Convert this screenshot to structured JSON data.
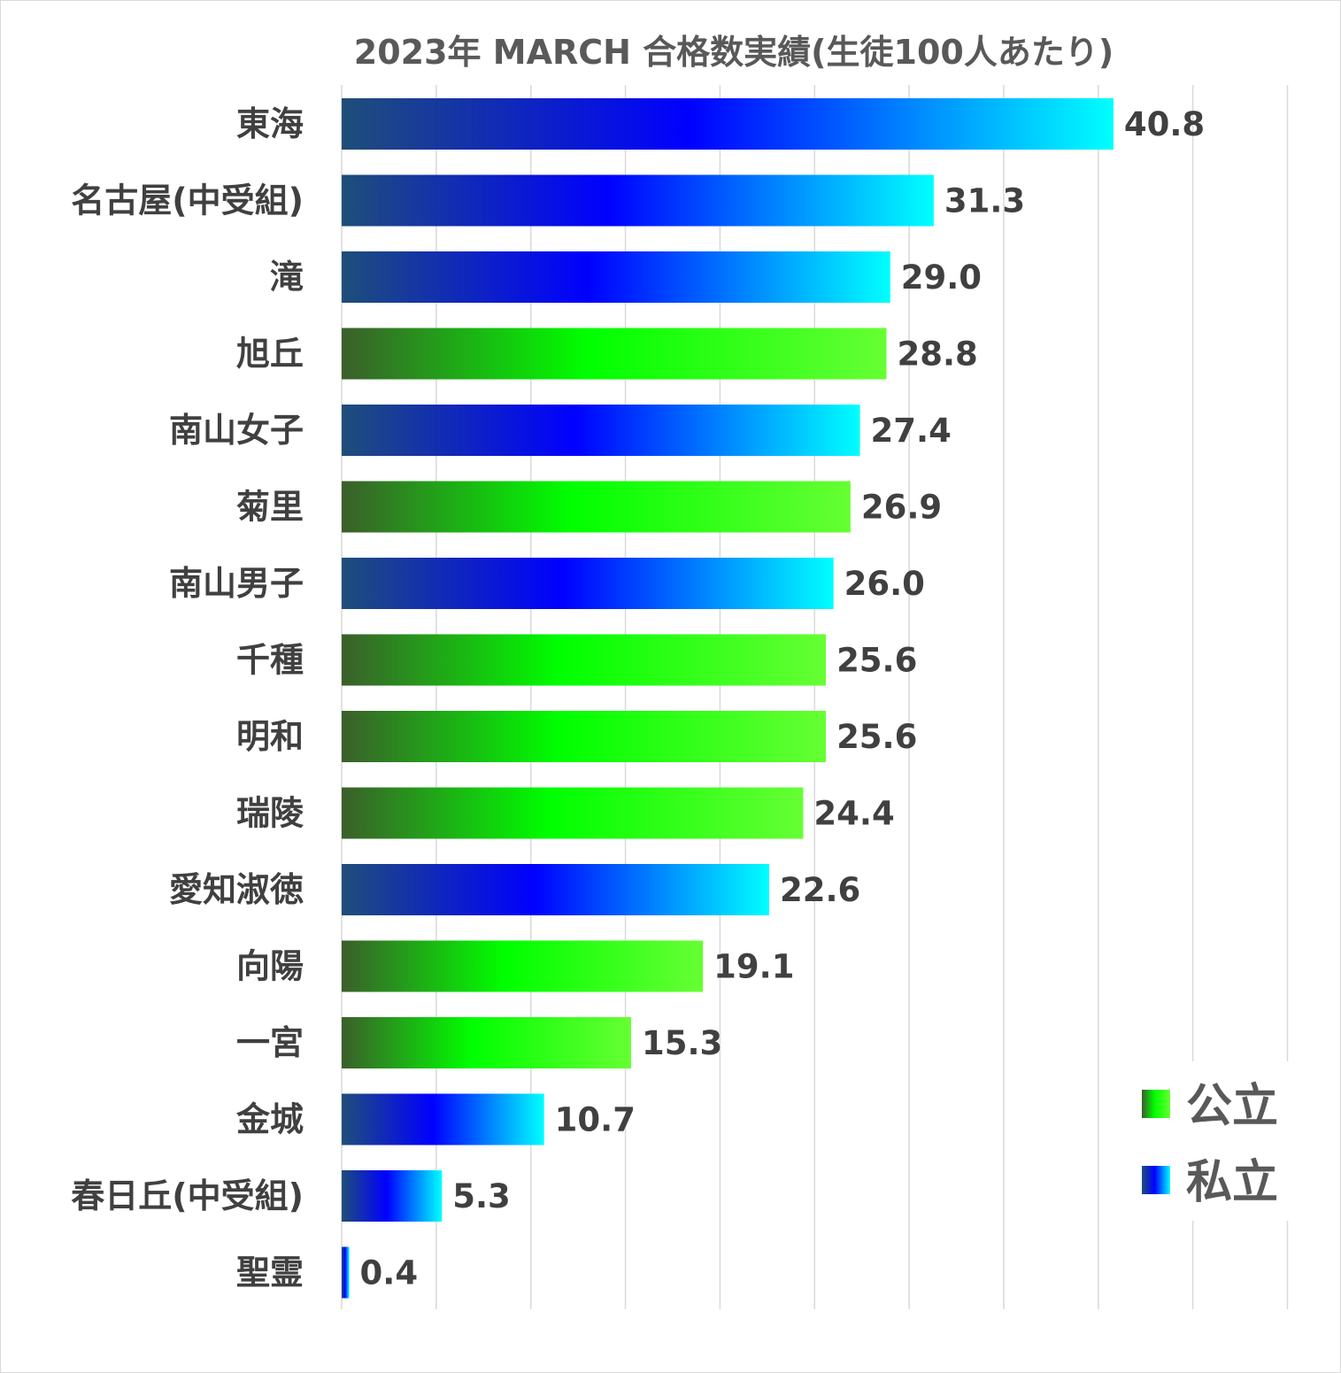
{
  "chart_data": {
    "type": "bar",
    "orientation": "horizontal",
    "title": "2023年 MARCH 合格数実績(生徒100人あたり)",
    "categories": [
      "東海",
      "名古屋(中受組)",
      "滝",
      "旭丘",
      "南山女子",
      "菊里",
      "南山男子",
      "千種",
      "明和",
      "瑞陵",
      "愛知淑徳",
      "向陽",
      "一宮",
      "金城",
      "春日丘(中受組)",
      "聖霊"
    ],
    "values": [
      40.8,
      31.3,
      29.0,
      28.8,
      27.4,
      26.9,
      26.0,
      25.6,
      25.6,
      24.4,
      22.6,
      19.1,
      15.3,
      10.7,
      5.3,
      0.4
    ],
    "value_labels": [
      "40.8",
      "31.3",
      "29.0",
      "28.8",
      "27.4",
      "26.9",
      "26.0",
      "25.6",
      "25.6",
      "24.4",
      "22.6",
      "19.1",
      "15.3",
      "10.7",
      "5.3",
      "0.4"
    ],
    "groups": [
      "私立",
      "私立",
      "私立",
      "公立",
      "私立",
      "公立",
      "私立",
      "公立",
      "公立",
      "公立",
      "私立",
      "公立",
      "公立",
      "私立",
      "私立",
      "私立"
    ],
    "legend": [
      {
        "name": "公立",
        "key": "public",
        "gradient": [
          "#3b5e2b",
          "#00ff00",
          "#66ff33"
        ]
      },
      {
        "name": "私立",
        "key": "private",
        "gradient": [
          "#1f4e79",
          "#0000ff",
          "#00ffff"
        ]
      }
    ],
    "legend_placement": "bottom-right",
    "xlim": [
      0,
      50
    ],
    "gridlines": true,
    "xlabel": "",
    "ylabel": "",
    "colors": {
      "gridline": "#d9d9d9",
      "text": "#404040",
      "title": "#595959"
    }
  }
}
